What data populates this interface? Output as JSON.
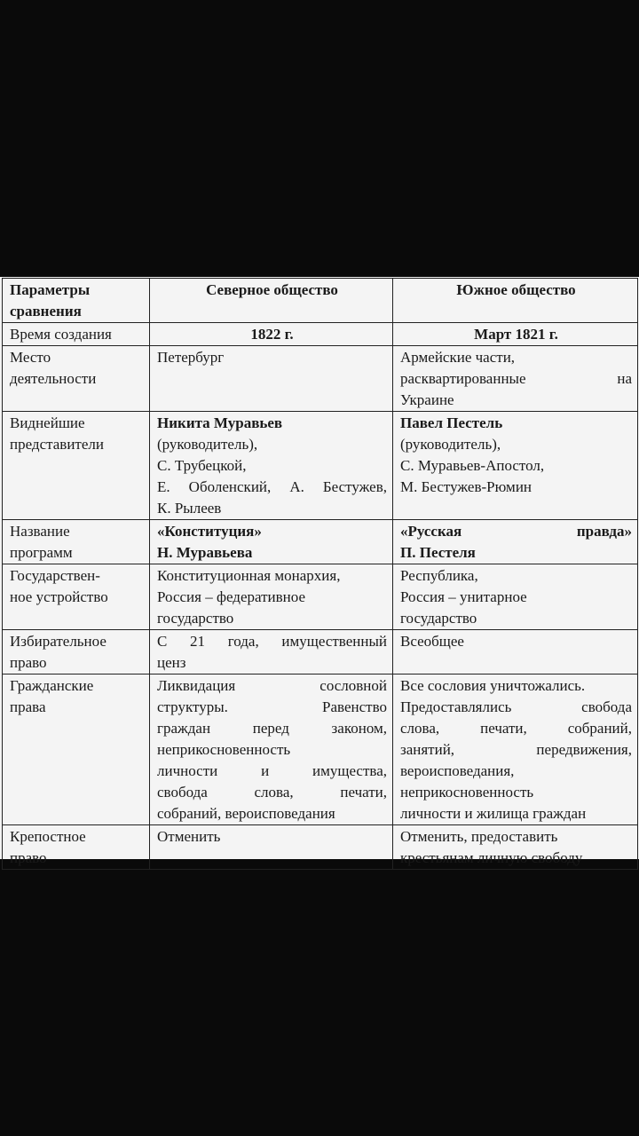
{
  "table": {
    "header": [
      [
        "Параметры",
        "сравнения"
      ],
      [
        "Северное общество"
      ],
      [
        "Южное общество"
      ]
    ],
    "rows": [
      [
        [
          "Время создания"
        ],
        [
          "1822 г."
        ],
        [
          "Март 1821 г."
        ]
      ],
      [
        [
          "Место",
          "деятельности"
        ],
        [
          "Петербург"
        ],
        [
          "Армейские части,",
          "расквартированные на",
          "Украине"
        ]
      ],
      [
        [
          "Виднейшие",
          "представители"
        ],
        [
          "Никита Муравьев",
          "(руководитель),",
          "С. Трубецкой,",
          "Е. Оболенский, А. Бестужев,",
          "К. Рылеев"
        ],
        [
          "Павел Пестель",
          "(руководитель),",
          "С. Муравьев-Апостол,",
          "М. Бестужев-Рюмин"
        ]
      ],
      [
        [
          "Название",
          "программ"
        ],
        [
          "«Конституция»",
          "Н. Муравьева"
        ],
        [
          "«Русская правда»",
          "П. Пестеля"
        ]
      ],
      [
        [
          "Государствен-",
          "ное устройство"
        ],
        [
          "Конституционная монархия,",
          "Россия – федеративное",
          "государство"
        ],
        [
          "Республика,",
          "Россия – унитарное",
          "государство"
        ]
      ],
      [
        [
          "Избирательное",
          "право"
        ],
        [
          "С 21 года, имущественный",
          "ценз"
        ],
        [
          "Всеобщее"
        ]
      ],
      [
        [
          "Гражданские",
          "права"
        ],
        [
          "Ликвидация сословной",
          "структуры. Равенство",
          "граждан перед законом,",
          "неприкосновенность",
          "личности и имущества,",
          "свобода слова, печати,",
          "собраний, вероисповедания"
        ],
        [
          "Все сословия уничтожались.",
          "Предоставлялись свобода",
          "слова, печати, собраний,",
          "занятий, передвижения,",
          "вероисповедания,",
          "неприкосновенность",
          "личности и жилища граждан"
        ]
      ],
      [
        [
          "Крепостное",
          "право"
        ],
        [
          "Отменить"
        ],
        [
          "Отменить, предоставить",
          "крестьянам личную свободу"
        ]
      ]
    ]
  }
}
